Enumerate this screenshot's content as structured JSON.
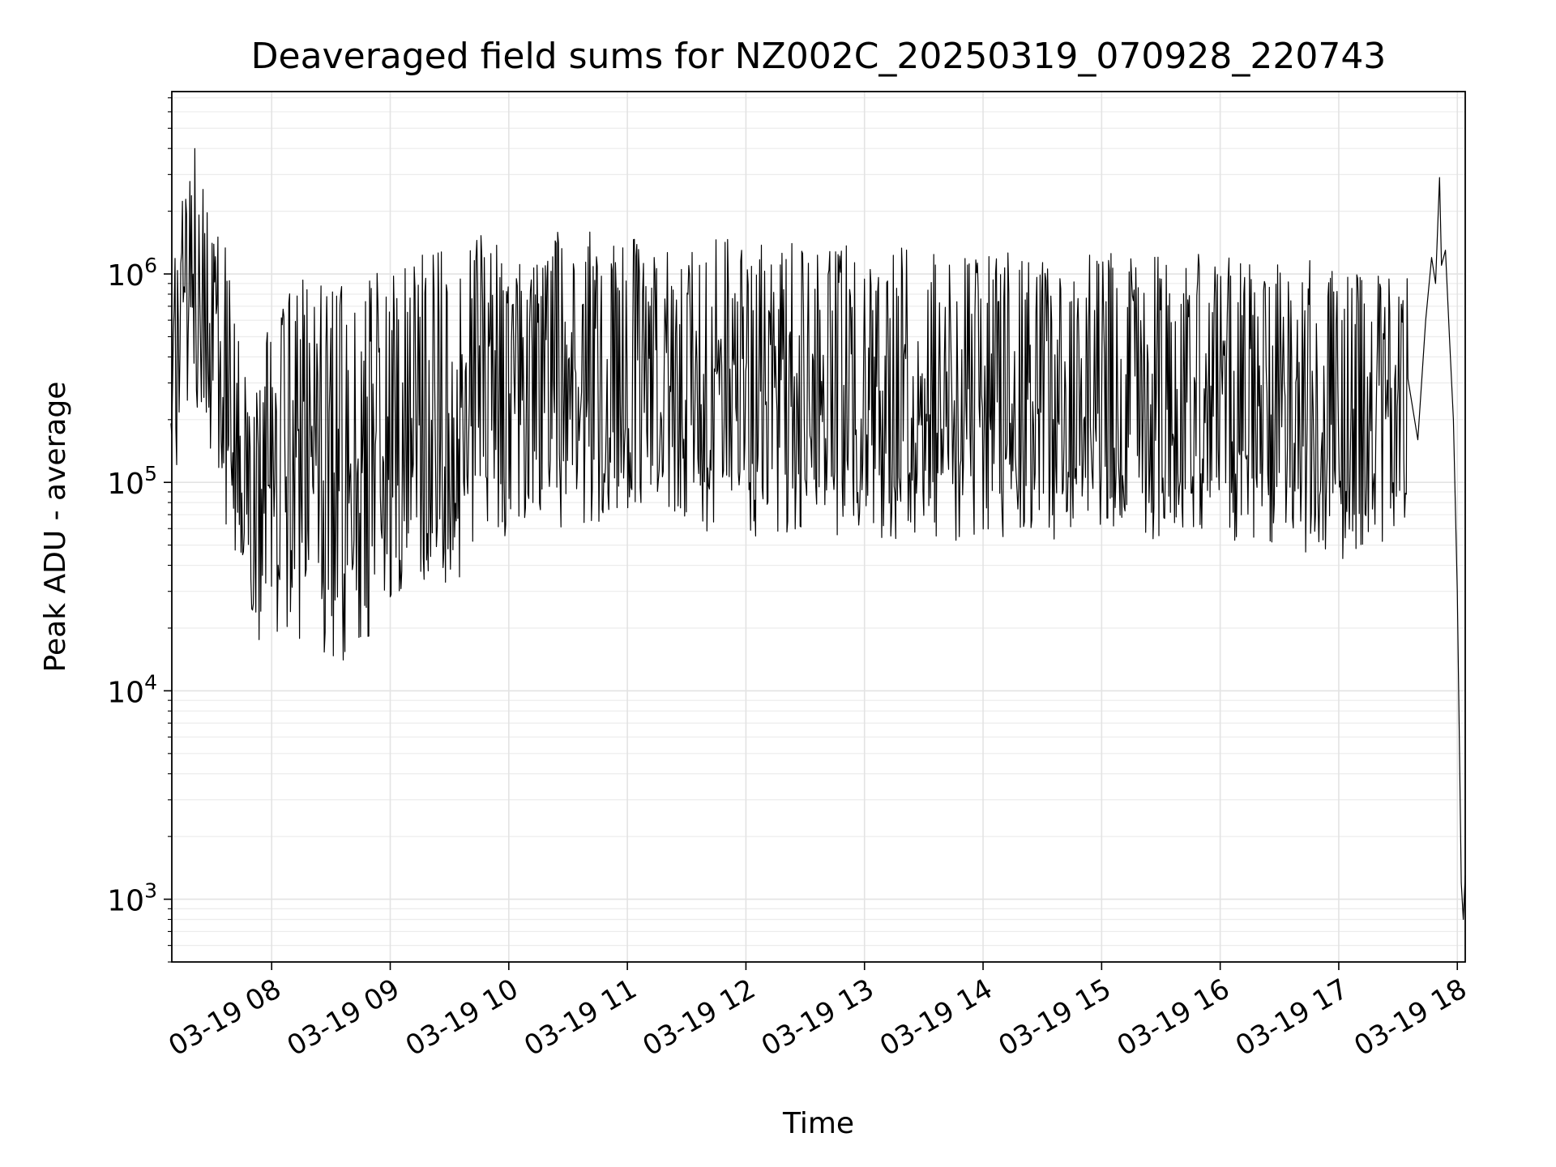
{
  "chart_data": {
    "type": "line",
    "title": "Deaveraged field sums for NZ002C_20250319_070928_220743",
    "xlabel": "Time",
    "ylabel": "Peak ADU - average",
    "y_scale": "log",
    "xlim": [
      "2025-03-19 07:09:28",
      "2025-03-19 18:04:00"
    ],
    "ylim": [
      500,
      7500000
    ],
    "x_ticks": [
      {
        "t": "2025-03-19 08:00",
        "label": "03-19 08"
      },
      {
        "t": "2025-03-19 09:00",
        "label": "03-19 09"
      },
      {
        "t": "2025-03-19 10:00",
        "label": "03-19 10"
      },
      {
        "t": "2025-03-19 11:00",
        "label": "03-19 11"
      },
      {
        "t": "2025-03-19 12:00",
        "label": "03-19 12"
      },
      {
        "t": "2025-03-19 13:00",
        "label": "03-19 13"
      },
      {
        "t": "2025-03-19 14:00",
        "label": "03-19 14"
      },
      {
        "t": "2025-03-19 15:00",
        "label": "03-19 15"
      },
      {
        "t": "2025-03-19 16:00",
        "label": "03-19 16"
      },
      {
        "t": "2025-03-19 17:00",
        "label": "03-19 17"
      },
      {
        "t": "2025-03-19 18:00",
        "label": "03-19 18"
      }
    ],
    "y_ticks": [
      {
        "value": 1000,
        "base": "10",
        "exp": "3"
      },
      {
        "value": 10000,
        "base": "10",
        "exp": "4"
      },
      {
        "value": 100000,
        "base": "10",
        "exp": "5"
      },
      {
        "value": 1000000,
        "base": "10",
        "exp": "6"
      }
    ],
    "grid": "both",
    "line_color": "#000000",
    "series": [
      {
        "envelope": [
          {
            "t": "2025-03-19 07:09",
            "low": 90000,
            "high": 1000000
          },
          {
            "t": "2025-03-19 07:20",
            "low": 260000,
            "high": 4700000
          },
          {
            "t": "2025-03-19 07:30",
            "low": 120000,
            "high": 1900000
          },
          {
            "t": "2025-03-19 07:40",
            "low": 45000,
            "high": 1500000
          },
          {
            "t": "2025-03-19 07:50",
            "low": 14000,
            "high": 180000
          },
          {
            "t": "2025-03-19 08:00",
            "low": 19000,
            "high": 950000
          },
          {
            "t": "2025-03-19 08:15",
            "low": 17000,
            "high": 950000
          },
          {
            "t": "2025-03-19 08:30",
            "low": 12000,
            "high": 900000
          },
          {
            "t": "2025-03-19 08:45",
            "low": 16000,
            "high": 900000
          },
          {
            "t": "2025-03-19 09:00",
            "low": 25000,
            "high": 1200000
          },
          {
            "t": "2025-03-19 09:20",
            "low": 30000,
            "high": 1300000
          },
          {
            "t": "2025-03-19 09:35",
            "low": 35000,
            "high": 1400000
          },
          {
            "t": "2025-03-19 09:45",
            "low": 55000,
            "high": 1600000
          },
          {
            "t": "2025-03-19 10:00",
            "low": 55000,
            "high": 1600000
          },
          {
            "t": "2025-03-19 10:30",
            "low": 60000,
            "high": 1600000
          },
          {
            "t": "2025-03-19 11:00",
            "low": 65000,
            "high": 1600000
          },
          {
            "t": "2025-03-19 11:30",
            "low": 60000,
            "high": 1500000
          },
          {
            "t": "2025-03-19 12:00",
            "low": 55000,
            "high": 1500000
          },
          {
            "t": "2025-03-19 12:30",
            "low": 55000,
            "high": 1400000
          },
          {
            "t": "2025-03-19 13:00",
            "low": 55000,
            "high": 1400000
          },
          {
            "t": "2025-03-19 13:30",
            "low": 52000,
            "high": 1300000
          },
          {
            "t": "2025-03-19 14:00",
            "low": 50000,
            "high": 1300000
          },
          {
            "t": "2025-03-19 14:30",
            "low": 52000,
            "high": 1300000
          },
          {
            "t": "2025-03-19 15:00",
            "low": 52000,
            "high": 1300000
          },
          {
            "t": "2025-03-19 15:30",
            "low": 52000,
            "high": 1300000
          },
          {
            "t": "2025-03-19 16:00",
            "low": 52000,
            "high": 1300000
          },
          {
            "t": "2025-03-19 16:30",
            "low": 50000,
            "high": 1250000
          },
          {
            "t": "2025-03-19 17:00",
            "low": 42000,
            "high": 1100000
          },
          {
            "t": "2025-03-19 17:20",
            "low": 38000,
            "high": 1000000
          },
          {
            "t": "2025-03-19 17:35",
            "low": 60000,
            "high": 1000000
          }
        ],
        "tail": [
          {
            "t": "2025-03-19 17:40",
            "y": 160000
          },
          {
            "t": "2025-03-19 17:44",
            "y": 600000
          },
          {
            "t": "2025-03-19 17:47",
            "y": 1200000
          },
          {
            "t": "2025-03-19 17:49",
            "y": 900000
          },
          {
            "t": "2025-03-19 17:51",
            "y": 2900000
          },
          {
            "t": "2025-03-19 17:52",
            "y": 1100000
          },
          {
            "t": "2025-03-19 17:54",
            "y": 1300000
          },
          {
            "t": "2025-03-19 17:56",
            "y": 500000
          },
          {
            "t": "2025-03-19 17:58",
            "y": 200000
          },
          {
            "t": "2025-03-19 18:00",
            "y": 30000
          },
          {
            "t": "2025-03-19 18:01",
            "y": 6000
          },
          {
            "t": "2025-03-19 18:02",
            "y": 1200
          },
          {
            "t": "2025-03-19 18:03",
            "y": 800
          },
          {
            "t": "2025-03-19 18:04",
            "y": 1300
          }
        ]
      }
    ]
  }
}
